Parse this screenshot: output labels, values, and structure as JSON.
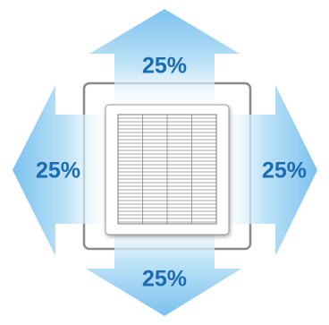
{
  "arrows": [
    "25%",
    "25%",
    "25%",
    "25%"
  ]
}
